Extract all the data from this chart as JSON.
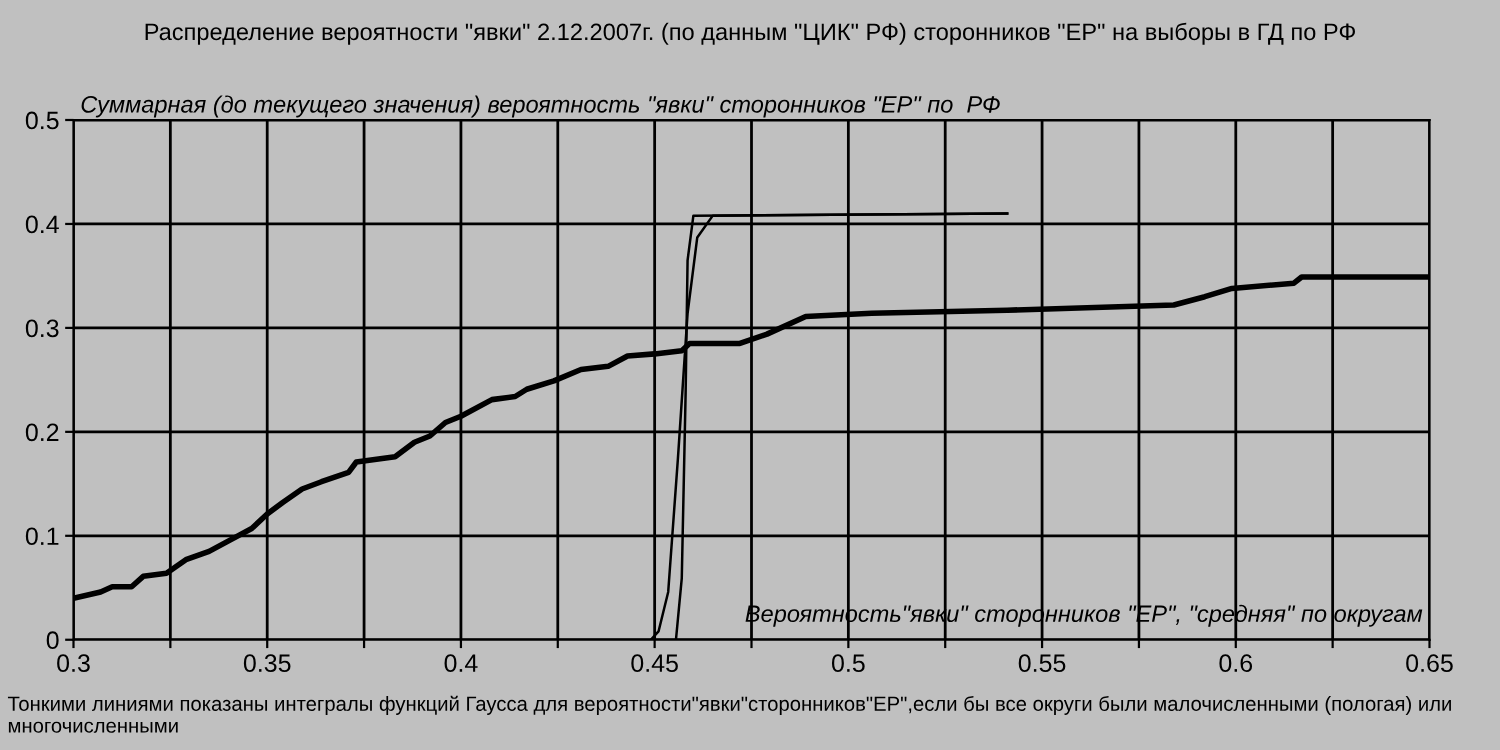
{
  "chart_data": {
    "type": "line",
    "title": "Распределение вероятности \"явки\" 2.12.2007г. (по данным \"ЦИК\" РФ) сторонников \"ЕР\" на выборы в ГД по РФ",
    "xlabel": "Вероятность\"явки\" сторонников \"ЕР\", \"средняя\" по округам",
    "ylabel": "Суммарная (до текущего значения) вероятность \"явки\" сторонников \"ЕР\" по  РФ",
    "annotations": [
      "Тонкими линиями показаны интегралы функций Гаусса для вероятности\"явки\"сторонников\"ЕР\",если бы все округи были малочисленными (пологая) или многочисленными"
    ],
    "series": [
      {
        "color": "#000000",
        "x": [
          0.3,
          0.307,
          0.31,
          0.315,
          0.318,
          0.324,
          0.329,
          0.335,
          0.341,
          0.346,
          0.35,
          0.354,
          0.359,
          0.364,
          0.371,
          0.373,
          0.383,
          0.388,
          0.392,
          0.396,
          0.4,
          0.408,
          0.414,
          0.417,
          0.424,
          0.431,
          0.438,
          0.443,
          0.45,
          0.457,
          0.459,
          0.472,
          0.479,
          0.489,
          0.506,
          0.541,
          0.584,
          0.592,
          0.599,
          0.615,
          0.617,
          0.65
        ],
        "values": [
          0.04,
          0.046,
          0.051,
          0.051,
          0.061,
          0.064,
          0.077,
          0.085,
          0.097,
          0.107,
          0.121,
          0.132,
          0.145,
          0.152,
          0.161,
          0.171,
          0.176,
          0.19,
          0.196,
          0.209,
          0.215,
          0.231,
          0.234,
          0.241,
          0.249,
          0.26,
          0.263,
          0.273,
          0.275,
          0.278,
          0.285,
          0.285,
          0.294,
          0.311,
          0.314,
          0.317,
          0.322,
          0.33,
          0.338,
          0.343,
          0.349,
          0.349
        ]
      },
      {
        "color": "#000000",
        "x": [
          0.449,
          0.451,
          0.4535,
          0.456,
          0.4585,
          0.461,
          0.465,
          0.541
        ],
        "values": [
          0,
          0.008,
          0.046,
          0.174,
          0.314,
          0.387,
          0.408,
          0.41
        ]
      },
      {
        "color": "#000000",
        "x": [
          0.4555,
          0.457,
          0.458,
          0.4585,
          0.46,
          0.541
        ],
        "values": [
          0,
          0.059,
          0.238,
          0.365,
          0.408,
          0.41
        ]
      }
    ],
    "xlim": [
      0.3,
      0.65
    ],
    "xticks": [
      0.3,
      {
        "value": 0.325,
        "label": null
      },
      0.35,
      {
        "value": 0.375,
        "label": null
      },
      0.4,
      {
        "value": 0.425,
        "label": null
      },
      0.45,
      {
        "value": 0.475,
        "label": null
      },
      0.5,
      {
        "value": 0.525,
        "label": null
      },
      0.55,
      {
        "value": 0.575,
        "label": null
      },
      0.6,
      {
        "value": 0.625,
        "label": null
      },
      0.65
    ],
    "ylim": [
      0,
      0.5
    ],
    "yticks": [
      0,
      0.1,
      0.2,
      0.3,
      0.4,
      0.5
    ],
    "grid": true
  }
}
